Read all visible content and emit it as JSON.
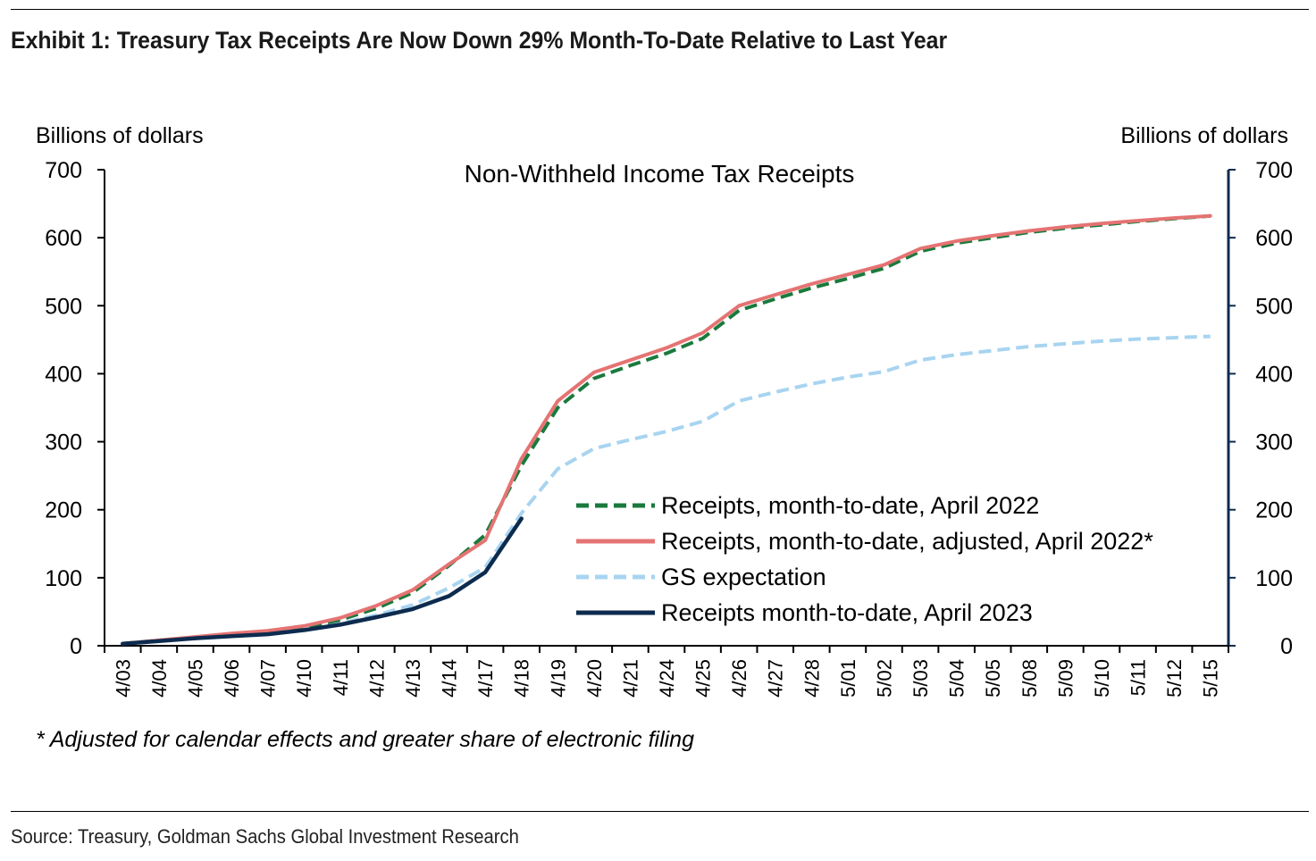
{
  "header": {
    "title": "Exhibit 1: Treasury Tax Receipts Are Now Down 29% Month-To-Date Relative to Last Year"
  },
  "footer": {
    "source": "Source: Treasury, Goldman Sachs Global Investment Research"
  },
  "chart_data": {
    "type": "line",
    "title": "Non-Withheld Income Tax Receipts",
    "ylabel_left": "Billions of dollars",
    "ylabel_right": "Billions of dollars",
    "ylim": [
      0,
      700
    ],
    "yticks": [
      0,
      100,
      200,
      300,
      400,
      500,
      600,
      700
    ],
    "grid": false,
    "legend_position": "lower-right",
    "footnote": "* Adjusted for calendar effects and greater share of electronic filing",
    "categories": [
      "4/03",
      "4/04",
      "4/05",
      "4/06",
      "4/07",
      "4/10",
      "4/11",
      "4/12",
      "4/13",
      "4/14",
      "4/17",
      "4/18",
      "4/19",
      "4/20",
      "4/21",
      "4/24",
      "4/25",
      "4/26",
      "4/27",
      "4/28",
      "5/01",
      "5/02",
      "5/03",
      "5/04",
      "5/05",
      "5/08",
      "5/09",
      "5/10",
      "5/11",
      "5/12",
      "5/15"
    ],
    "series": [
      {
        "name": "Receipts, month-to-date, April 2022",
        "color": "#1a7a3c",
        "dash": "dashed",
        "values": [
          3,
          8,
          12,
          17,
          21,
          27,
          38,
          55,
          78,
          118,
          163,
          265,
          350,
          393,
          412,
          430,
          452,
          493,
          510,
          526,
          540,
          555,
          580,
          592,
          600,
          608,
          614,
          619,
          624,
          628,
          632
        ]
      },
      {
        "name": "Receipts, month-to-date, adjusted, April 2022*",
        "color": "#e57373",
        "dash": "solid",
        "values": [
          3,
          8,
          13,
          18,
          22,
          29,
          41,
          59,
          82,
          120,
          155,
          275,
          360,
          402,
          420,
          438,
          460,
          500,
          516,
          532,
          546,
          560,
          584,
          595,
          603,
          610,
          616,
          621,
          625,
          629,
          632
        ]
      },
      {
        "name": "GS expectation",
        "color": "#a8d4f0",
        "dash": "dashed",
        "values": [
          3,
          7,
          11,
          15,
          18,
          25,
          33,
          45,
          60,
          85,
          115,
          195,
          260,
          290,
          303,
          315,
          330,
          360,
          373,
          385,
          395,
          403,
          420,
          428,
          434,
          440,
          444,
          448,
          451,
          453,
          455
        ]
      },
      {
        "name": "Receipts month-to-date, April 2023",
        "color": "#0d2b4e",
        "dash": "solid",
        "values": [
          3,
          7,
          11,
          14,
          17,
          23,
          31,
          42,
          54,
          73,
          108,
          187,
          null,
          null,
          null,
          null,
          null,
          null,
          null,
          null,
          null,
          null,
          null,
          null,
          null,
          null,
          null,
          null,
          null,
          null,
          null
        ]
      }
    ]
  }
}
